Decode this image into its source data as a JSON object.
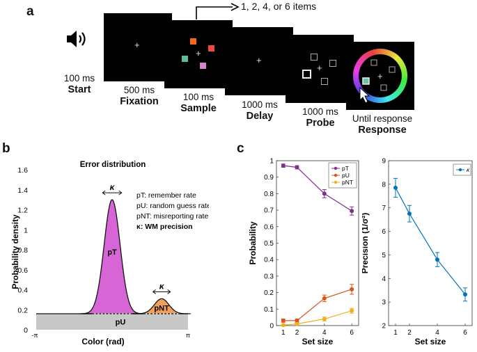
{
  "panel_a": {
    "letter": "a",
    "set_size_annotation": "1, 2, 4, or 6 items",
    "timeline": [
      {
        "duration": "100 ms",
        "phase": "Start"
      },
      {
        "duration": "500 ms",
        "phase": "Fixation"
      },
      {
        "duration": "100 ms",
        "phase": "Sample"
      },
      {
        "duration": "1000 ms",
        "phase": "Delay"
      },
      {
        "duration": "1000 ms",
        "phase": "Probe"
      },
      {
        "duration": "Until response",
        "phase": "Response"
      }
    ],
    "fixation_symbol": "+",
    "sample_colors": [
      "#f26a1b",
      "#ea4a41",
      "#5fb99a",
      "#d884c8"
    ]
  },
  "panel_b": {
    "letter": "b",
    "chart_data": {
      "type": "area",
      "title": "Error distribution",
      "xlabel": "Color (rad)",
      "ylabel": "Probability density",
      "x_ticks": [
        "-π",
        "π"
      ],
      "y_ticks": [
        "0",
        "0.2",
        "0.4",
        "0.6",
        "0.8",
        "1",
        "1.2",
        "1.4",
        "1.6"
      ],
      "ylim": [
        0,
        1.6
      ],
      "baseline_density": 0.16,
      "peaks": [
        {
          "label": "pT",
          "center": 0,
          "height": 1.3,
          "color": "#d865d6"
        },
        {
          "label": "pNT",
          "center": 2.05,
          "height": 0.31,
          "color": "#f0a05a"
        }
      ],
      "baseline_label": "pU",
      "kappa_symbol": "κ",
      "legend": [
        {
          "text": "pT: remember rate",
          "bold": false
        },
        {
          "text": "pU: random guess rate",
          "bold": false
        },
        {
          "text": "pNT: misreporting rate",
          "bold": false
        },
        {
          "text": "κ: WM precision",
          "bold": true
        }
      ]
    }
  },
  "panel_c": {
    "letter": "c",
    "chart_data": [
      {
        "type": "line",
        "xlabel": "Set size",
        "ylabel": "Probability",
        "x": [
          1,
          2,
          4,
          6
        ],
        "ylim": [
          0,
          1
        ],
        "y_ticks": [
          "0",
          "0.1",
          "0.2",
          "0.3",
          "0.4",
          "0.5",
          "0.6",
          "0.7",
          "0.8",
          "0.9",
          "1"
        ],
        "x_ticks": [
          "1",
          "2",
          "4",
          "6"
        ],
        "series": [
          {
            "name": "pT",
            "color": "#7e2f8e",
            "values": [
              0.97,
              0.96,
              0.8,
              0.695
            ],
            "errors": [
              0.01,
              0.01,
              0.025,
              0.025
            ]
          },
          {
            "name": "pU",
            "color": "#d95319",
            "values": [
              0.03,
              0.03,
              0.165,
              0.22
            ],
            "errors": [
              0.01,
              0.01,
              0.02,
              0.03
            ]
          },
          {
            "name": "pNT",
            "color": "#edb120",
            "values": [
              0.003,
              0.01,
              0.04,
              0.09
            ],
            "errors": [
              0.005,
              0.006,
              0.012,
              0.015
            ]
          }
        ]
      },
      {
        "type": "line",
        "xlabel": "Set size",
        "ylabel": "Precision (1/σ²)",
        "x": [
          1,
          2,
          4,
          6
        ],
        "ylim": [
          2,
          9
        ],
        "y_ticks": [
          "2",
          "3",
          "4",
          "5",
          "6",
          "7",
          "8",
          "9"
        ],
        "x_ticks": [
          "1",
          "2",
          "4",
          "6"
        ],
        "series": [
          {
            "name": "κ",
            "color": "#0072bd",
            "values": [
              7.85,
              6.75,
              4.8,
              3.32
            ],
            "errors": [
              0.4,
              0.35,
              0.3,
              0.28
            ]
          }
        ]
      }
    ]
  }
}
